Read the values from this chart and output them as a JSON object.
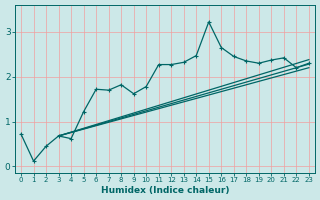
{
  "xlabel": "Humidex (Indice chaleur)",
  "bg_color": "#cce8e8",
  "grid_color": "#f0a0a0",
  "line_color": "#006666",
  "xlim": [
    -0.5,
    23.5
  ],
  "ylim": [
    -0.15,
    3.6
  ],
  "yticks": [
    0,
    1,
    2,
    3
  ],
  "xticks": [
    0,
    1,
    2,
    3,
    4,
    5,
    6,
    7,
    8,
    9,
    10,
    11,
    12,
    13,
    14,
    15,
    16,
    17,
    18,
    19,
    20,
    21,
    22,
    23
  ],
  "series1_x": [
    0,
    1,
    2,
    3,
    4,
    5,
    6,
    7,
    8,
    9,
    10,
    11,
    12,
    13,
    14,
    15,
    16,
    17,
    18,
    19,
    20,
    21,
    22,
    23
  ],
  "series1_y": [
    0.72,
    0.12,
    0.45,
    0.68,
    0.62,
    1.22,
    1.72,
    1.7,
    1.82,
    1.62,
    1.78,
    2.27,
    2.27,
    2.32,
    2.47,
    3.22,
    2.65,
    2.45,
    2.35,
    2.3,
    2.37,
    2.42,
    2.2,
    2.3
  ],
  "line2_x": [
    3,
    23
  ],
  "line2_y": [
    0.68,
    2.38
  ],
  "line3_x": [
    3,
    23
  ],
  "line3_y": [
    0.68,
    2.28
  ],
  "line4_x": [
    3,
    23
  ],
  "line4_y": [
    0.68,
    2.2
  ]
}
